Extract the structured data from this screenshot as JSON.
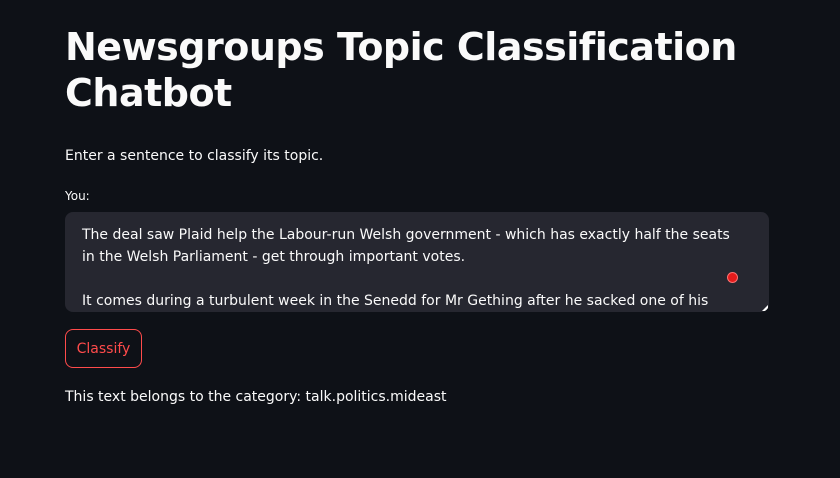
{
  "page": {
    "title": "Newsgroups Topic Classification Chatbot",
    "subtitle": "Enter a sentence to classify its topic."
  },
  "input": {
    "label": "You:",
    "value": "The deal saw Plaid help the Labour-run Welsh government - which has exactly half the seats in the Welsh Parliament - get through important votes.\n\nIt comes during a turbulent week in the Senedd for Mr Gething after he sacked one of his ministers."
  },
  "classify_button": {
    "label": "Classify"
  },
  "result": {
    "text": "This text belongs to the category: talk.politics.mideast"
  },
  "colors": {
    "background": "#0e1117",
    "input_background": "#262730",
    "accent": "#ff4b4b",
    "text": "#fafafa"
  }
}
